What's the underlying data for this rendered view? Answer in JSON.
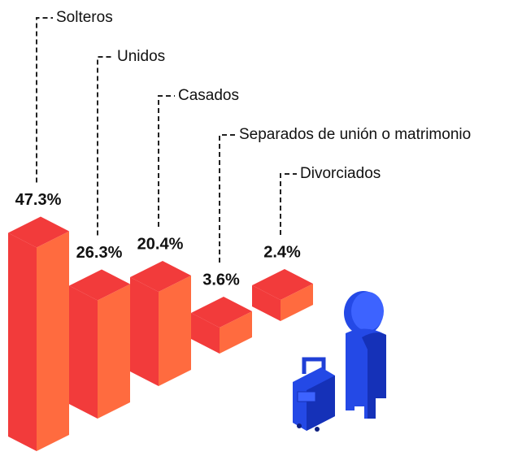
{
  "chart_data": {
    "type": "bar",
    "categories": [
      "Solteros",
      "Unidos",
      "Casados",
      "Separados de unión o matrimonio",
      "Divorciados"
    ],
    "values": [
      47.3,
      26.3,
      20.4,
      3.6,
      2.4
    ],
    "value_labels": [
      "47.3%",
      "26.3%",
      "20.4%",
      "3.6%",
      "2.4%"
    ],
    "color": "#f23b3b"
  }
}
